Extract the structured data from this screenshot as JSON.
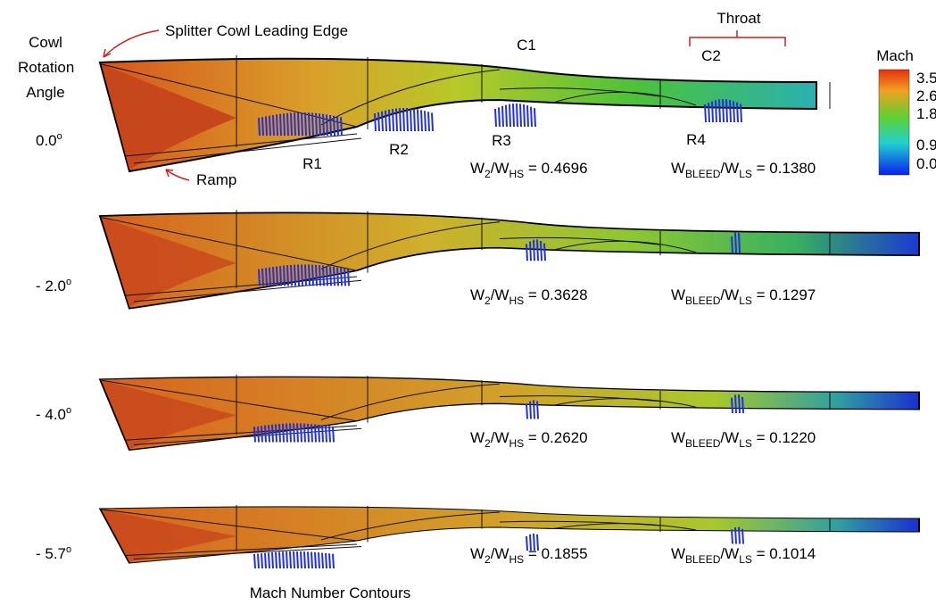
{
  "figure": {
    "row_header": "Cowl Rotation Angle",
    "annotations": {
      "leading_edge": "Splitter Cowl Leading Edge",
      "ramp": "Ramp",
      "throat": "Throat",
      "c1": "C1",
      "c2": "C2",
      "r1": "R1",
      "r2": "R2",
      "r3": "R3",
      "r4": "R4"
    },
    "colorbar": {
      "title": "Mach",
      "labels": [
        "3.5",
        "2.6",
        "1.8",
        "0.9",
        "0.0"
      ]
    },
    "ratio_labels": {
      "w2": [
        "W",
        "2",
        "/W",
        "HS",
        " = "
      ],
      "bleed": [
        "W",
        "BLEED",
        "/W",
        "LS",
        " = "
      ]
    },
    "degree_mark": "o",
    "cases": [
      {
        "angle": "0.0",
        "w2_ratio": "0.4696",
        "bleed_ratio": "0.1380"
      },
      {
        "angle": "- 2.0",
        "w2_ratio": "0.3628",
        "bleed_ratio": "0.1297"
      },
      {
        "angle": "- 4.0",
        "w2_ratio": "0.2620",
        "bleed_ratio": "0.1220"
      },
      {
        "angle": "- 5.7",
        "w2_ratio": "0.1855",
        "bleed_ratio": "0.1014"
      }
    ],
    "caption": "Mach Number Contours"
  }
}
